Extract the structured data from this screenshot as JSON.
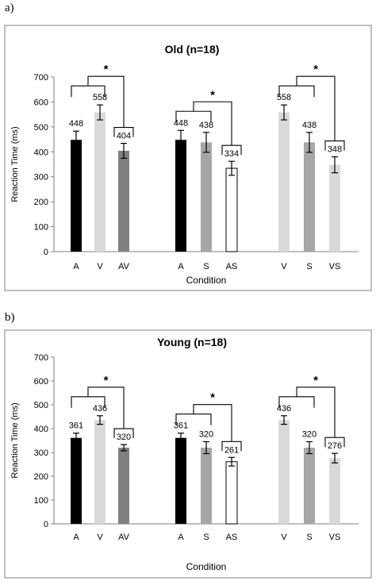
{
  "panels": [
    {
      "label": "a)",
      "chart_data": {
        "type": "bar",
        "title": "Old (n=18)",
        "xlabel": "Condition",
        "ylabel": "Reaction Time (ms)",
        "ylim": [
          0,
          700
        ],
        "yticks": [
          0,
          100,
          200,
          300,
          400,
          500,
          600,
          700
        ],
        "grid": false,
        "groups": [
          {
            "bars": [
              {
                "label": "A",
                "value": 448,
                "error": 35,
                "color": "#000000"
              },
              {
                "label": "V",
                "value": 558,
                "error": 30,
                "color": "#d9d9d9"
              },
              {
                "label": "AV",
                "value": 404,
                "error": 30,
                "color": "#808080"
              }
            ]
          },
          {
            "bars": [
              {
                "label": "A",
                "value": 448,
                "error": 38,
                "color": "#000000"
              },
              {
                "label": "S",
                "value": 438,
                "error": 40,
                "color": "#a6a6a6"
              },
              {
                "label": "AS",
                "value": 334,
                "error": 28,
                "color": "#ffffff"
              }
            ]
          },
          {
            "bars": [
              {
                "label": "V",
                "value": 558,
                "error": 30,
                "color": "#d9d9d9"
              },
              {
                "label": "S",
                "value": 438,
                "error": 40,
                "color": "#a6a6a6"
              },
              {
                "label": "VS",
                "value": 348,
                "error": 32,
                "color": "#d9d9d9"
              }
            ]
          }
        ],
        "significance_marker": "*"
      }
    },
    {
      "label": "b)",
      "chart_data": {
        "type": "bar",
        "title": "Young (n=18)",
        "xlabel": "Condition",
        "ylabel": "Reaction Time (ms)",
        "ylim": [
          0,
          700
        ],
        "yticks": [
          0,
          100,
          200,
          300,
          400,
          500,
          600,
          700
        ],
        "grid": false,
        "groups": [
          {
            "bars": [
              {
                "label": "A",
                "value": 361,
                "error": 20,
                "color": "#000000"
              },
              {
                "label": "V",
                "value": 436,
                "error": 18,
                "color": "#d9d9d9"
              },
              {
                "label": "AV",
                "value": 320,
                "error": 13,
                "color": "#808080"
              }
            ]
          },
          {
            "bars": [
              {
                "label": "A",
                "value": 361,
                "error": 20,
                "color": "#000000"
              },
              {
                "label": "S",
                "value": 320,
                "error": 25,
                "color": "#a6a6a6"
              },
              {
                "label": "AS",
                "value": 261,
                "error": 18,
                "color": "#ffffff"
              }
            ]
          },
          {
            "bars": [
              {
                "label": "V",
                "value": 436,
                "error": 18,
                "color": "#d9d9d9"
              },
              {
                "label": "S",
                "value": 320,
                "error": 25,
                "color": "#a6a6a6"
              },
              {
                "label": "VS",
                "value": 276,
                "error": 20,
                "color": "#d9d9d9"
              }
            ]
          }
        ],
        "significance_marker": "*"
      }
    }
  ]
}
